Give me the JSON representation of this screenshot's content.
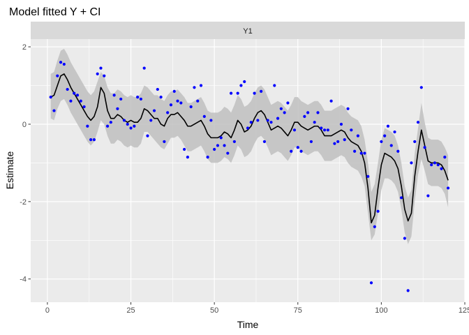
{
  "chart_data": {
    "type": "line",
    "title": "Model fitted Y + CI",
    "facet_label": "Y1",
    "xlabel": "Time",
    "ylabel": "Estimate",
    "xlim": [
      -5,
      125
    ],
    "ylim": [
      -4.6,
      2.2
    ],
    "x_ticks": [
      0,
      25,
      50,
      75,
      100,
      125
    ],
    "y_ticks": [
      -4,
      -2,
      0,
      2
    ],
    "grid": true,
    "legend": "none",
    "colors": {
      "panel_background": "#ebebeb",
      "grid_major": "#ffffff",
      "strip_background": "#d9d9d9",
      "ribbon": "#bfbfbf",
      "fitted_line": "#000000",
      "observed_points": "#0000ff"
    },
    "series": [
      {
        "kind": "ribbon",
        "x": [
          1,
          2,
          3,
          4,
          5,
          6,
          7,
          8,
          9,
          10,
          11,
          12,
          13,
          14,
          15,
          16,
          17,
          18,
          19,
          20,
          21,
          22,
          23,
          24,
          25,
          26,
          27,
          28,
          29,
          30,
          31,
          32,
          33,
          34,
          35,
          36,
          37,
          38,
          39,
          40,
          41,
          42,
          43,
          44,
          45,
          46,
          47,
          48,
          49,
          50,
          51,
          52,
          53,
          54,
          55,
          56,
          57,
          58,
          59,
          60,
          61,
          62,
          63,
          64,
          65,
          66,
          67,
          68,
          69,
          70,
          71,
          72,
          73,
          74,
          75,
          76,
          77,
          78,
          79,
          80,
          81,
          82,
          83,
          84,
          85,
          86,
          87,
          88,
          89,
          90,
          91,
          92,
          93,
          94,
          95,
          96,
          97,
          98,
          99,
          100,
          101,
          102,
          103,
          104,
          105,
          106,
          107,
          108,
          109,
          110,
          111,
          112,
          113,
          114,
          115,
          116,
          117,
          118,
          119,
          120
        ],
        "lower": [
          0.15,
          0.1,
          0.4,
          0.6,
          0.65,
          0.5,
          0.3,
          0.15,
          0.0,
          -0.15,
          -0.3,
          -0.45,
          -0.55,
          -0.45,
          -0.2,
          0.1,
          0.0,
          -0.3,
          -0.5,
          -0.5,
          -0.4,
          -0.45,
          -0.55,
          -0.6,
          -0.55,
          -0.6,
          -0.6,
          -0.5,
          -0.2,
          -0.2,
          -0.3,
          -0.4,
          -0.5,
          -0.6,
          -0.65,
          -0.5,
          -0.35,
          -0.35,
          -0.3,
          -0.4,
          -0.55,
          -0.7,
          -0.7,
          -0.65,
          -0.6,
          -0.55,
          -0.7,
          -0.9,
          -1.0,
          -1.0,
          -1.0,
          -0.95,
          -0.85,
          -0.9,
          -1.0,
          -0.8,
          -0.55,
          -0.65,
          -0.85,
          -0.8,
          -0.7,
          -0.5,
          -0.35,
          -0.3,
          -0.4,
          -0.6,
          -0.8,
          -0.75,
          -0.7,
          -0.75,
          -0.85,
          -0.95,
          -0.8,
          -0.6,
          -0.6,
          -0.7,
          -0.75,
          -0.8,
          -0.75,
          -0.7,
          -0.7,
          -0.8,
          -0.95,
          -0.95,
          -0.95,
          -0.9,
          -0.85,
          -0.8,
          -0.85,
          -1.0,
          -1.1,
          -1.15,
          -1.2,
          -1.35,
          -1.6,
          -2.3,
          -3.0,
          -2.85,
          -2.3,
          -1.7,
          -1.4,
          -1.4,
          -1.45,
          -1.55,
          -1.75,
          -2.2,
          -2.8,
          -3.1,
          -2.9,
          -2.0,
          -1.3,
          -0.9,
          -1.2,
          -1.55,
          -1.6,
          -1.6,
          -1.6,
          -1.65,
          -1.8,
          -2.15
        ],
        "upper": [
          1.3,
          1.35,
          1.65,
          1.9,
          1.95,
          1.8,
          1.6,
          1.45,
          1.3,
          1.15,
          1.0,
          0.85,
          0.75,
          0.85,
          1.1,
          1.35,
          1.25,
          0.95,
          0.8,
          0.8,
          0.9,
          0.85,
          0.75,
          0.7,
          0.75,
          0.7,
          0.7,
          0.8,
          1.0,
          0.95,
          0.85,
          0.75,
          0.75,
          0.65,
          0.6,
          0.75,
          0.85,
          0.85,
          0.9,
          0.8,
          0.7,
          0.55,
          0.55,
          0.6,
          0.65,
          0.7,
          0.55,
          0.35,
          0.3,
          0.3,
          0.3,
          0.35,
          0.45,
          0.4,
          0.3,
          0.5,
          0.75,
          0.65,
          0.45,
          0.5,
          0.6,
          0.8,
          0.95,
          1.0,
          0.9,
          0.7,
          0.5,
          0.55,
          0.6,
          0.55,
          0.45,
          0.35,
          0.5,
          0.7,
          0.7,
          0.6,
          0.55,
          0.5,
          0.55,
          0.6,
          0.6,
          0.5,
          0.35,
          0.35,
          0.35,
          0.4,
          0.45,
          0.5,
          0.45,
          0.3,
          0.2,
          0.15,
          0.1,
          -0.05,
          -0.4,
          -1.0,
          -1.75,
          -1.55,
          -1.0,
          -0.4,
          -0.1,
          -0.15,
          -0.2,
          -0.3,
          -0.55,
          -1.0,
          -1.6,
          -1.9,
          -1.7,
          -0.75,
          -0.1,
          0.55,
          0.05,
          -0.35,
          -0.4,
          -0.4,
          -0.4,
          -0.45,
          -0.6,
          -0.8
        ]
      },
      {
        "kind": "line",
        "x": [
          1,
          2,
          3,
          4,
          5,
          6,
          7,
          8,
          9,
          10,
          11,
          12,
          13,
          14,
          15,
          16,
          17,
          18,
          19,
          20,
          21,
          22,
          23,
          24,
          25,
          26,
          27,
          28,
          29,
          30,
          31,
          32,
          33,
          34,
          35,
          36,
          37,
          38,
          39,
          40,
          41,
          42,
          43,
          44,
          45,
          46,
          47,
          48,
          49,
          50,
          51,
          52,
          53,
          54,
          55,
          56,
          57,
          58,
          59,
          60,
          61,
          62,
          63,
          64,
          65,
          66,
          67,
          68,
          69,
          70,
          71,
          72,
          73,
          74,
          75,
          76,
          77,
          78,
          79,
          80,
          81,
          82,
          83,
          84,
          85,
          86,
          87,
          88,
          89,
          90,
          91,
          92,
          93,
          94,
          95,
          96,
          97,
          98,
          99,
          100,
          101,
          102,
          103,
          104,
          105,
          106,
          107,
          108,
          109,
          110,
          111,
          112,
          113,
          114,
          115,
          116,
          117,
          118,
          119,
          120
        ],
        "y": [
          0.7,
          0.75,
          1.0,
          1.25,
          1.3,
          1.15,
          0.95,
          0.8,
          0.65,
          0.5,
          0.35,
          0.2,
          0.1,
          0.2,
          0.45,
          0.95,
          0.8,
          0.35,
          0.15,
          0.15,
          0.25,
          0.2,
          0.1,
          0.05,
          0.1,
          0.05,
          0.05,
          0.15,
          0.4,
          0.35,
          0.25,
          0.15,
          0.15,
          0.0,
          -0.05,
          0.15,
          0.25,
          0.25,
          0.3,
          0.2,
          0.1,
          -0.05,
          -0.05,
          0.0,
          0.05,
          0.1,
          -0.05,
          -0.25,
          -0.35,
          -0.35,
          -0.35,
          -0.3,
          -0.2,
          -0.25,
          -0.35,
          -0.15,
          0.1,
          0.0,
          -0.2,
          -0.15,
          -0.05,
          0.15,
          0.3,
          0.35,
          0.25,
          0.05,
          -0.15,
          -0.1,
          -0.05,
          -0.1,
          -0.2,
          -0.3,
          -0.15,
          0.05,
          0.05,
          -0.05,
          -0.1,
          -0.15,
          -0.1,
          -0.05,
          -0.05,
          -0.15,
          -0.3,
          -0.3,
          -0.3,
          -0.25,
          -0.2,
          -0.15,
          -0.2,
          -0.35,
          -0.45,
          -0.5,
          -0.55,
          -0.7,
          -1.0,
          -1.65,
          -2.55,
          -2.35,
          -1.65,
          -1.05,
          -0.75,
          -0.8,
          -0.85,
          -0.95,
          -1.15,
          -1.6,
          -2.2,
          -2.5,
          -2.3,
          -1.35,
          -0.7,
          -0.15,
          -0.55,
          -0.95,
          -1.0,
          -1.0,
          -1.0,
          -1.05,
          -1.2,
          -1.45
        ]
      },
      {
        "kind": "points",
        "x": [
          1,
          2,
          3,
          4,
          5,
          6,
          7,
          8,
          9,
          10,
          11,
          12,
          13,
          14,
          15,
          16,
          17,
          18,
          19,
          20,
          21,
          22,
          23,
          24,
          25,
          26,
          27,
          28,
          29,
          30,
          31,
          32,
          33,
          34,
          35,
          36,
          37,
          38,
          39,
          40,
          41,
          42,
          43,
          44,
          45,
          46,
          47,
          48,
          49,
          50,
          51,
          52,
          53,
          54,
          55,
          56,
          57,
          58,
          59,
          60,
          61,
          62,
          63,
          64,
          65,
          66,
          67,
          68,
          69,
          70,
          71,
          72,
          73,
          74,
          75,
          76,
          77,
          78,
          79,
          80,
          81,
          82,
          83,
          84,
          85,
          86,
          87,
          88,
          89,
          90,
          91,
          92,
          93,
          94,
          95,
          96,
          97,
          98,
          99,
          100,
          101,
          102,
          103,
          104,
          105,
          106,
          107,
          108,
          109,
          110,
          111,
          112,
          113,
          114,
          115,
          116,
          117,
          118,
          119,
          120
        ],
        "y": [
          0.7,
          0.35,
          1.25,
          1.6,
          1.55,
          0.9,
          0.6,
          0.8,
          0.75,
          0.6,
          0.45,
          -0.05,
          -0.4,
          -0.4,
          1.3,
          1.45,
          1.25,
          -0.05,
          0.05,
          0.75,
          0.4,
          0.65,
          0.1,
          0.0,
          -0.1,
          -0.05,
          0.7,
          0.65,
          1.45,
          -0.3,
          0.1,
          0.35,
          0.9,
          0.7,
          -0.45,
          0.3,
          0.5,
          0.85,
          0.6,
          0.55,
          -0.65,
          -0.85,
          0.45,
          0.95,
          0.6,
          1.0,
          0.2,
          -0.85,
          0.1,
          -0.65,
          -0.55,
          -0.35,
          -0.55,
          -0.75,
          0.8,
          -0.45,
          0.8,
          1.0,
          1.1,
          -0.1,
          0.05,
          0.8,
          0.1,
          0.85,
          -0.45,
          0.1,
          0.05,
          1.0,
          0.15,
          0.4,
          0.3,
          0.55,
          -0.7,
          -0.15,
          -0.6,
          -0.7,
          0.2,
          0.3,
          -0.45,
          0.05,
          0.3,
          -0.1,
          -0.15,
          -0.15,
          0.6,
          -0.5,
          -0.45,
          0.0,
          -0.4,
          0.4,
          -0.15,
          -0.7,
          -0.3,
          -0.75,
          -0.75,
          -1.35,
          -4.1,
          -2.65,
          -2.25,
          -0.45,
          -0.3,
          -0.05,
          -0.55,
          -0.2,
          -0.7,
          -1.9,
          -2.95,
          -4.3,
          -1.0,
          -0.45,
          0.05,
          0.95,
          -0.6,
          -1.85,
          -1.05,
          -1.0,
          -1.05,
          -1.15,
          -0.85,
          -1.65
        ]
      }
    ]
  }
}
